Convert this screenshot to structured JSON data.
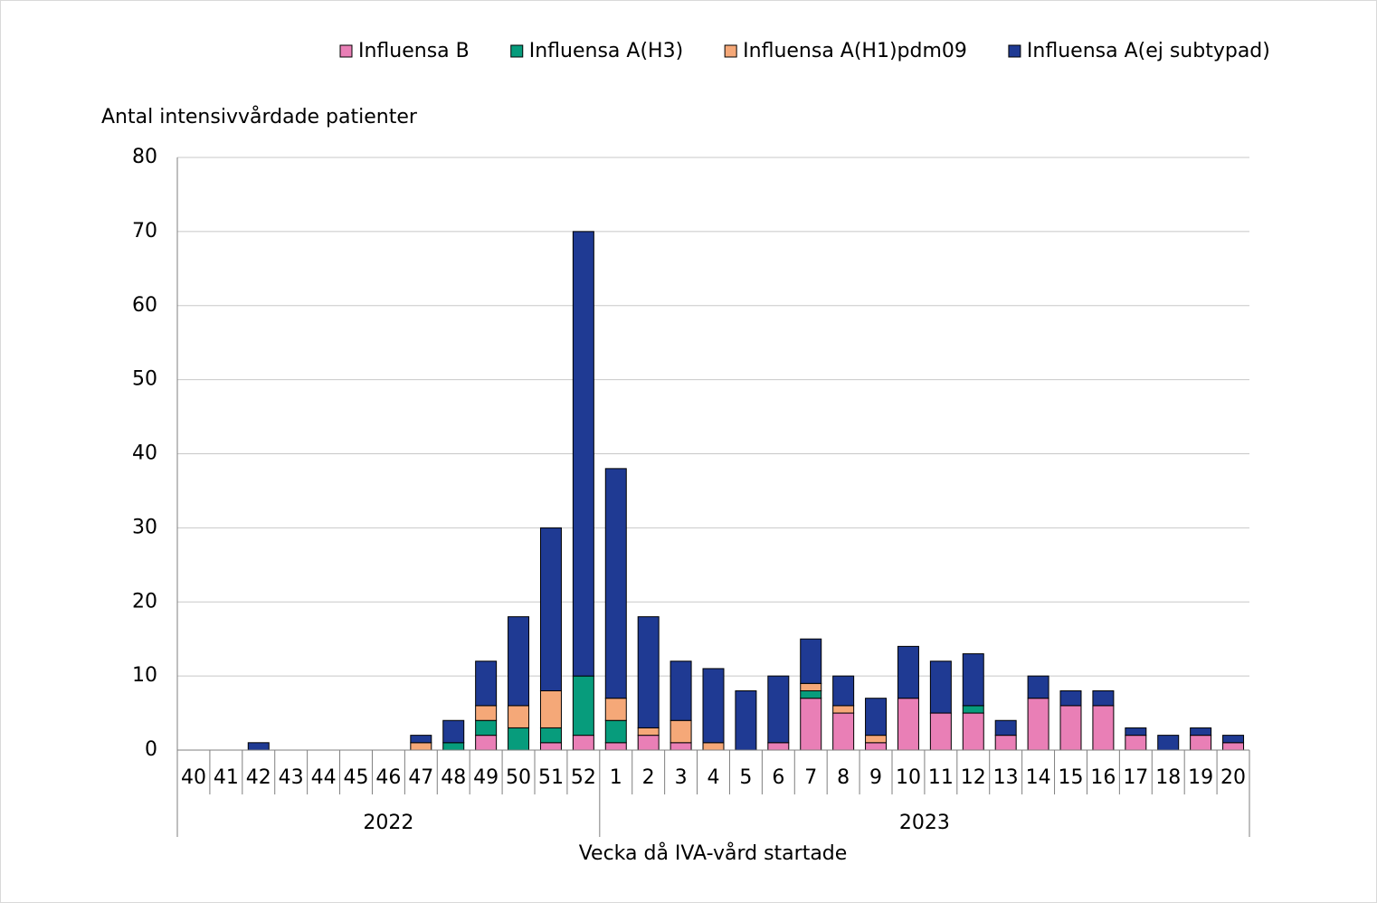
{
  "chart_data": {
    "type": "stacked_bar",
    "y_axis_label": "Antal intensivvårdade patienter",
    "x_axis_label": "Vecka då IVA-vård startade",
    "categories": [
      "40",
      "41",
      "42",
      "43",
      "44",
      "45",
      "46",
      "47",
      "48",
      "49",
      "50",
      "51",
      "52",
      "1",
      "2",
      "3",
      "4",
      "5",
      "6",
      "7",
      "8",
      "9",
      "10",
      "11",
      "12",
      "13",
      "14",
      "15",
      "16",
      "17",
      "18",
      "19",
      "20"
    ],
    "groups": [
      "2022",
      "2023"
    ],
    "series": [
      {
        "name": "Influensa B",
        "color": "#e97fb6",
        "values": [
          0,
          0,
          0,
          0,
          0,
          0,
          0,
          0,
          0,
          2,
          0,
          1,
          2,
          1,
          2,
          1,
          0,
          0,
          1,
          7,
          5,
          1,
          7,
          5,
          5,
          2,
          7,
          6,
          6,
          2,
          0,
          2,
          1
        ]
      },
      {
        "name": "Influensa A(H3)",
        "color": "#079c7c",
        "values": [
          0,
          0,
          0,
          0,
          0,
          0,
          0,
          0,
          1,
          2,
          3,
          2,
          8,
          3,
          0,
          0,
          0,
          0,
          0,
          1,
          0,
          0,
          0,
          0,
          1,
          0,
          0,
          0,
          0,
          0,
          0,
          0,
          0
        ]
      },
      {
        "name": "Influensa A(H1)pdm09",
        "color": "#f5a878",
        "values": [
          0,
          0,
          0,
          0,
          0,
          0,
          0,
          1,
          0,
          2,
          3,
          5,
          0,
          3,
          1,
          3,
          1,
          0,
          0,
          1,
          1,
          1,
          0,
          0,
          0,
          0,
          0,
          0,
          0,
          0,
          0,
          0,
          0
        ]
      },
      {
        "name": "Influensa A(ej subtypad)",
        "color": "#1f3a93",
        "values": [
          0,
          0,
          1,
          0,
          0,
          0,
          0,
          1,
          3,
          6,
          12,
          22,
          60,
          31,
          15,
          8,
          10,
          8,
          9,
          6,
          4,
          5,
          7,
          7,
          7,
          2,
          3,
          2,
          2,
          1,
          2,
          1,
          1
        ]
      }
    ],
    "ylim": [
      0,
      80
    ],
    "yticks": [
      0,
      10,
      20,
      30,
      40,
      50,
      60,
      70,
      80
    ],
    "grid": true,
    "legend": "top"
  }
}
